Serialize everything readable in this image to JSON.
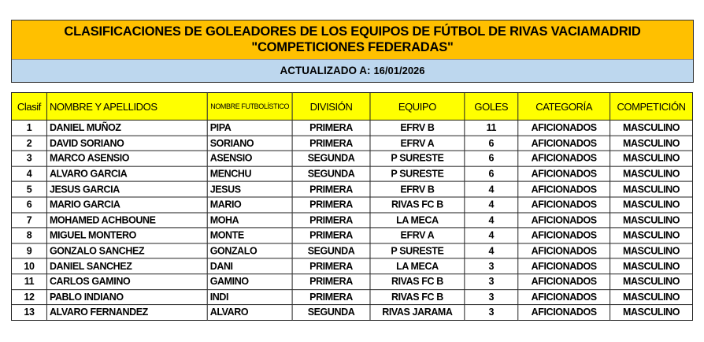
{
  "title": {
    "line1": "CLASIFICACIONES DE GOLEADORES DE LOS EQUIPOS DE FÚTBOL DE RIVAS VACIAMADRID",
    "line2": "\"COMPETICIONES FEDERADAS\"",
    "updated_label": "ACTUALIZADO A:",
    "updated_date": "16/01/2026"
  },
  "columns": [
    "Clasif",
    "NOMBRE Y APELLIDOS",
    "NOMBRE FUTBOLÍSTICO",
    "DIVISIÓN",
    "EQUIPO",
    "GOLES",
    "CATEGORÍA",
    "COMPETICIÓN"
  ],
  "rows": [
    [
      "1",
      "DANIEL MUÑOZ",
      "PIPA",
      "PRIMERA",
      "EFRV B",
      "11",
      "AFICIONADOS",
      "MASCULINO"
    ],
    [
      "2",
      "DAVID SORIANO",
      "SORIANO",
      "PRIMERA",
      "EFRV A",
      "6",
      "AFICIONADOS",
      "MASCULINO"
    ],
    [
      "3",
      "MARCO ASENSIO",
      "ASENSIO",
      "SEGUNDA",
      "P SURESTE",
      "6",
      "AFICIONADOS",
      "MASCULINO"
    ],
    [
      "4",
      "ALVARO GARCIA",
      "MENCHU",
      "SEGUNDA",
      "P SURESTE",
      "6",
      "AFICIONADOS",
      "MASCULINO"
    ],
    [
      "5",
      "JESUS GARCIA",
      "JESUS",
      "PRIMERA",
      "EFRV B",
      "4",
      "AFICIONADOS",
      "MASCULINO"
    ],
    [
      "6",
      "MARIO GARCIA",
      "MARIO",
      "PRIMERA",
      "RIVAS FC B",
      "4",
      "AFICIONADOS",
      "MASCULINO"
    ],
    [
      "7",
      "MOHAMED ACHBOUNE",
      "MOHA",
      "PRIMERA",
      "LA MECA",
      "4",
      "AFICIONADOS",
      "MASCULINO"
    ],
    [
      "8",
      "MIGUEL MONTERO",
      "MONTE",
      "PRIMERA",
      "EFRV A",
      "4",
      "AFICIONADOS",
      "MASCULINO"
    ],
    [
      "9",
      "GONZALO SANCHEZ",
      "GONZALO",
      "SEGUNDA",
      "P SURESTE",
      "4",
      "AFICIONADOS",
      "MASCULINO"
    ],
    [
      "10",
      "DANIEL SANCHEZ",
      "DANI",
      "PRIMERA",
      "LA MECA",
      "3",
      "AFICIONADOS",
      "MASCULINO"
    ],
    [
      "11",
      "CARLOS GAMINO",
      "GAMINO",
      "PRIMERA",
      "RIVAS FC B",
      "3",
      "AFICIONADOS",
      "MASCULINO"
    ],
    [
      "12",
      "PABLO INDIANO",
      "INDI",
      "PRIMERA",
      "RIVAS FC B",
      "3",
      "AFICIONADOS",
      "MASCULINO"
    ],
    [
      "13",
      "ALVARO FERNANDEZ",
      "ALVARO",
      "SEGUNDA",
      "RIVAS JARAMA",
      "3",
      "AFICIONADOS",
      "MASCULINO"
    ]
  ]
}
